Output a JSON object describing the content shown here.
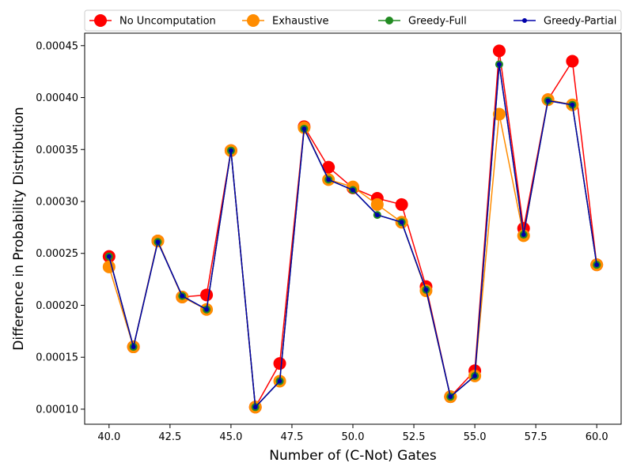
{
  "chart_data": {
    "type": "line",
    "title": "",
    "xlabel": "Number of (C-Not) Gates",
    "ylabel": "Difference in Probability Distribution",
    "xlim": [
      39.0,
      61.0
    ],
    "ylim": [
      8.55e-05,
      0.000462
    ],
    "x_ticks": [
      40.0,
      42.5,
      45.0,
      47.5,
      50.0,
      52.5,
      55.0,
      57.5,
      60.0
    ],
    "x_tick_labels": [
      "40.0",
      "42.5",
      "45.0",
      "47.5",
      "50.0",
      "52.5",
      "55.0",
      "57.5",
      "60.0"
    ],
    "y_ticks": [
      0.0001,
      0.00015,
      0.0002,
      0.00025,
      0.0003,
      0.00035,
      0.0004,
      0.00045
    ],
    "y_tick_labels": [
      "0.00010",
      "0.00015",
      "0.00020",
      "0.00025",
      "0.00030",
      "0.00035",
      "0.00040",
      "0.00045"
    ],
    "grid": false,
    "legend_position": "top",
    "x": [
      40,
      41,
      42,
      43,
      44,
      45,
      46,
      47,
      48,
      49,
      50,
      51,
      52,
      53,
      54,
      55,
      56,
      57,
      58,
      59,
      60
    ],
    "series": [
      {
        "name": "No Uncomputation",
        "color": "#ff0000",
        "values": [
          0.000247,
          0.00016,
          0.000262,
          0.000208,
          0.00021,
          0.000349,
          0.000102,
          0.000144,
          0.000372,
          0.000333,
          0.000313,
          0.000303,
          0.000297,
          0.000218,
          0.000112,
          0.000137,
          0.000445,
          0.000274,
          0.000398,
          0.000435,
          0.000239
        ]
      },
      {
        "name": "Exhaustive",
        "color": "#ff8c00",
        "values": [
          0.000237,
          0.00016,
          0.000262,
          0.000208,
          0.000196,
          0.000349,
          0.000102,
          0.000127,
          0.000371,
          0.000321,
          0.000314,
          0.000297,
          0.00028,
          0.000214,
          0.000112,
          0.000132,
          0.000384,
          0.000267,
          0.000398,
          0.000393,
          0.000239
        ]
      },
      {
        "name": "Greedy-Full",
        "color": "#228b22",
        "values": [
          0.000247,
          0.00016,
          0.000261,
          0.000209,
          0.000196,
          0.000349,
          0.000102,
          0.000127,
          0.00037,
          0.000321,
          0.000311,
          0.000287,
          0.00028,
          0.000215,
          0.000112,
          0.000132,
          0.000432,
          0.000268,
          0.000397,
          0.000393,
          0.000239
        ]
      },
      {
        "name": "Greedy-Partial",
        "color": "#0000aa",
        "values": [
          0.000247,
          0.00016,
          0.000261,
          0.000209,
          0.000196,
          0.000349,
          0.000102,
          0.000127,
          0.00037,
          0.000321,
          0.000311,
          0.000287,
          0.00028,
          0.000215,
          0.000112,
          0.000132,
          0.000432,
          0.000268,
          0.000397,
          0.000393,
          0.000239
        ]
      }
    ]
  }
}
